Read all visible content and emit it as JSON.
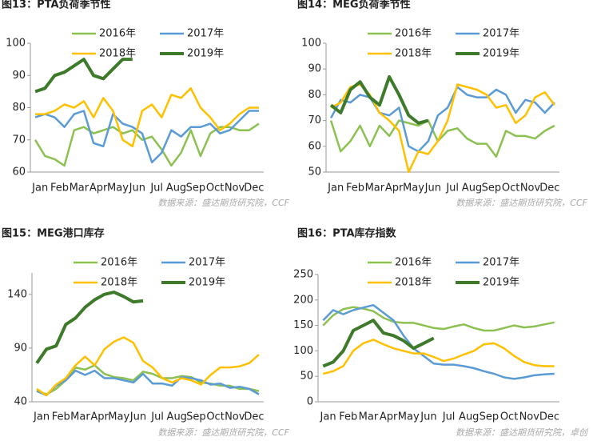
{
  "chart_data": [
    {
      "type": "line",
      "title": "图13：PTA负荷季节性",
      "source": "数据来源：盛达期货研究院，CCF",
      "x": [
        0.25,
        0.75,
        1.25,
        1.75,
        2.25,
        2.75,
        3.25,
        3.75,
        4.25,
        4.75,
        5.25,
        5.75,
        6.25,
        6.75,
        7.25,
        7.75,
        8.25,
        8.75,
        9.25,
        9.75,
        10.25,
        10.75,
        11.25,
        11.75
      ],
      "xlim": [
        0,
        12
      ],
      "xticks": [
        {
          "value": 0.5,
          "label": "Jan"
        },
        {
          "value": 1.5,
          "label": "Feb"
        },
        {
          "value": 2.5,
          "label": "Mar"
        },
        {
          "value": 3.5,
          "label": "Apr"
        },
        {
          "value": 4.5,
          "label": "May"
        },
        {
          "value": 5.5,
          "label": "Jun"
        },
        {
          "value": 6.5,
          "label": "Jul"
        },
        {
          "value": 7.5,
          "label": "Aug"
        },
        {
          "value": 8.5,
          "label": "Sep"
        },
        {
          "value": 9.5,
          "label": "Oct"
        },
        {
          "value": 10.5,
          "label": "Nov"
        },
        {
          "value": 11.5,
          "label": "Dec"
        }
      ],
      "ylim": [
        60,
        100
      ],
      "yticks": [
        60,
        70,
        80,
        90,
        100
      ],
      "series": [
        {
          "name": "2016年",
          "color": "#8cc152",
          "values": [
            70,
            65,
            64,
            62,
            73,
            74,
            72,
            73,
            74,
            72,
            73,
            70,
            71,
            67,
            62,
            66,
            73,
            65,
            72,
            74,
            74,
            73,
            73,
            75
          ]
        },
        {
          "name": "2017年",
          "color": "#5b9bd5",
          "values": [
            77,
            78,
            77,
            74,
            78,
            79,
            69,
            68,
            78,
            75,
            74,
            72,
            63,
            66,
            73,
            71,
            74,
            74,
            75,
            72,
            73,
            76,
            79,
            79
          ]
        },
        {
          "name": "2018年",
          "color": "#ffc000",
          "values": [
            78,
            78,
            79,
            81,
            80,
            82,
            77,
            83,
            79,
            70,
            68,
            79,
            81,
            77,
            84,
            83,
            86,
            80,
            77,
            73,
            75,
            78,
            80,
            80
          ]
        },
        {
          "name": "2019年",
          "color": "#3d7a2a",
          "values": [
            85,
            86,
            90,
            91,
            93,
            95,
            90,
            89,
            92,
            95,
            95,
            null,
            null,
            null,
            null,
            null,
            null,
            null,
            null,
            null,
            null,
            null,
            null,
            null
          ]
        }
      ]
    },
    {
      "type": "line",
      "title": "图14：MEG负荷季节性",
      "source": "数据来源：盛达期货研究院，CCF",
      "x": [
        0.25,
        0.75,
        1.25,
        1.75,
        2.25,
        2.75,
        3.25,
        3.75,
        4.25,
        4.75,
        5.25,
        5.75,
        6.25,
        6.75,
        7.25,
        7.75,
        8.25,
        8.75,
        9.25,
        9.75,
        10.25,
        10.75,
        11.25,
        11.75
      ],
      "xlim": [
        0,
        12
      ],
      "xticks": [
        {
          "value": 0.5,
          "label": "Jan"
        },
        {
          "value": 1.5,
          "label": "Feb"
        },
        {
          "value": 2.5,
          "label": "Mar"
        },
        {
          "value": 3.5,
          "label": "Apr"
        },
        {
          "value": 4.5,
          "label": "May"
        },
        {
          "value": 5.5,
          "label": "Jun"
        },
        {
          "value": 6.5,
          "label": "Jul"
        },
        {
          "value": 7.5,
          "label": "Aug"
        },
        {
          "value": 8.5,
          "label": "Sep"
        },
        {
          "value": 9.5,
          "label": "Oct"
        },
        {
          "value": 10.5,
          "label": "Nov"
        },
        {
          "value": 11.5,
          "label": "Dec"
        }
      ],
      "ylim": [
        50,
        100
      ],
      "yticks": [
        50,
        60,
        70,
        80,
        90,
        100
      ],
      "series": [
        {
          "name": "2016年",
          "color": "#8cc152",
          "values": [
            70,
            58,
            62,
            68,
            60,
            68,
            64,
            70,
            69,
            68,
            70,
            62,
            66,
            67,
            63,
            61,
            61,
            56,
            66,
            64,
            64,
            63,
            66,
            68
          ]
        },
        {
          "name": "2017年",
          "color": "#5b9bd5",
          "values": [
            71,
            78,
            77,
            80,
            79,
            73,
            72,
            75,
            60,
            58,
            62,
            72,
            75,
            83,
            80,
            79,
            79,
            82,
            80,
            73,
            78,
            77,
            73,
            77
          ]
        },
        {
          "name": "2018年",
          "color": "#ffc000",
          "values": [
            75,
            77,
            83,
            84,
            80,
            73,
            70,
            66,
            50,
            58,
            57,
            62,
            70,
            84,
            83,
            82,
            80,
            75,
            76,
            69,
            72,
            79,
            81,
            76
          ]
        },
        {
          "name": "2019年",
          "color": "#3d7a2a",
          "values": [
            76,
            73,
            82,
            85,
            79,
            76,
            87,
            80,
            72,
            69,
            70,
            null,
            null,
            null,
            null,
            null,
            null,
            null,
            null,
            null,
            null,
            null,
            null,
            null
          ]
        }
      ]
    },
    {
      "type": "line",
      "title": "图15：MEG港口库存",
      "source": "数据来源：盛达期货研究院，CCF",
      "x": [
        0.25,
        0.75,
        1.25,
        1.75,
        2.25,
        2.75,
        3.25,
        3.75,
        4.25,
        4.75,
        5.25,
        5.75,
        6.25,
        6.75,
        7.25,
        7.75,
        8.25,
        8.75,
        9.25,
        9.75,
        10.25,
        10.75,
        11.25,
        11.75
      ],
      "xlim": [
        0,
        12
      ],
      "xticks": [
        {
          "value": 0.5,
          "label": "Jan"
        },
        {
          "value": 1.5,
          "label": "Feb"
        },
        {
          "value": 2.5,
          "label": "Mar"
        },
        {
          "value": 3.5,
          "label": "Apr"
        },
        {
          "value": 4.5,
          "label": "May"
        },
        {
          "value": 5.5,
          "label": "Jun"
        },
        {
          "value": 6.5,
          "label": "Jul"
        },
        {
          "value": 7.5,
          "label": "Aug"
        },
        {
          "value": 8.5,
          "label": "Sep"
        },
        {
          "value": 9.5,
          "label": "Oct"
        },
        {
          "value": 10.5,
          "label": "Nov"
        },
        {
          "value": 11.5,
          "label": "Dec"
        }
      ],
      "ylim": [
        40,
        160
      ],
      "yticks": [
        40,
        90,
        140
      ],
      "series": [
        {
          "name": "2016年",
          "color": "#8cc152",
          "values": [
            50,
            47,
            52,
            60,
            72,
            70,
            74,
            66,
            63,
            62,
            60,
            68,
            66,
            62,
            62,
            64,
            63,
            58,
            57,
            55,
            55,
            52,
            52,
            50
          ]
        },
        {
          "name": "2017年",
          "color": "#5b9bd5",
          "values": [
            50,
            46,
            55,
            60,
            69,
            65,
            69,
            62,
            62,
            60,
            58,
            66,
            57,
            57,
            55,
            63,
            62,
            60,
            56,
            57,
            53,
            54,
            52,
            47
          ]
        },
        {
          "name": "2018年",
          "color": "#ffc000",
          "values": [
            52,
            46,
            56,
            62,
            74,
            82,
            74,
            89,
            96,
            100,
            95,
            78,
            72,
            62,
            58,
            62,
            60,
            56,
            65,
            72,
            72,
            73,
            76,
            84
          ]
        },
        {
          "name": "2019年",
          "color": "#3d7a2a",
          "values": [
            76,
            89,
            92,
            112,
            118,
            128,
            135,
            140,
            142,
            138,
            133,
            134,
            null,
            null,
            null,
            null,
            null,
            null,
            null,
            null,
            null,
            null,
            null,
            null
          ]
        }
      ]
    },
    {
      "type": "line",
      "title": "图16：PTA库存指数",
      "source": "数据来源：盛达期货研究院，卓创",
      "x": [
        0.25,
        0.75,
        1.25,
        1.75,
        2.25,
        2.75,
        3.25,
        3.75,
        4.25,
        4.75,
        5.25,
        5.75,
        6.25,
        6.75,
        7.25,
        7.75,
        8.25,
        8.75,
        9.25,
        9.75,
        10.25,
        10.75,
        11.25,
        11.75
      ],
      "xlim": [
        0,
        12
      ],
      "xticks": [
        {
          "value": 0.5,
          "label": "Jan"
        },
        {
          "value": 1.5,
          "label": "Feb"
        },
        {
          "value": 2.5,
          "label": "Mar"
        },
        {
          "value": 3.5,
          "label": "Apr"
        },
        {
          "value": 4.5,
          "label": "May"
        },
        {
          "value": 5.5,
          "label": "Jun"
        },
        {
          "value": 6.5,
          "label": "Jul"
        },
        {
          "value": 7.5,
          "label": "Aug"
        },
        {
          "value": 8.5,
          "label": "Sep"
        },
        {
          "value": 9.5,
          "label": "Oct"
        },
        {
          "value": 10.5,
          "label": "Nov"
        },
        {
          "value": 11.5,
          "label": "Dec"
        }
      ],
      "ylim": [
        0,
        250
      ],
      "yticks": [
        0,
        50,
        100,
        150,
        200,
        250
      ],
      "series": [
        {
          "name": "2016年",
          "color": "#8cc152",
          "values": [
            150,
            170,
            182,
            186,
            183,
            178,
            165,
            157,
            155,
            155,
            150,
            145,
            143,
            148,
            152,
            145,
            140,
            140,
            145,
            150,
            146,
            148,
            152,
            156
          ]
        },
        {
          "name": "2017年",
          "color": "#5b9bd5",
          "values": [
            160,
            180,
            172,
            180,
            185,
            190,
            175,
            160,
            130,
            105,
            90,
            75,
            73,
            73,
            70,
            66,
            60,
            55,
            48,
            45,
            48,
            52,
            54,
            55
          ]
        },
        {
          "name": "2018年",
          "color": "#ffc000",
          "values": [
            55,
            60,
            70,
            100,
            115,
            122,
            113,
            105,
            100,
            95,
            95,
            88,
            80,
            85,
            93,
            100,
            113,
            115,
            105,
            90,
            78,
            72,
            70,
            70
          ]
        },
        {
          "name": "2019年",
          "color": "#3d7a2a",
          "values": [
            70,
            78,
            100,
            140,
            150,
            160,
            135,
            130,
            120,
            105,
            115,
            125,
            null,
            null,
            null,
            null,
            null,
            null,
            null,
            null,
            null,
            null,
            null,
            null
          ]
        }
      ]
    }
  ]
}
